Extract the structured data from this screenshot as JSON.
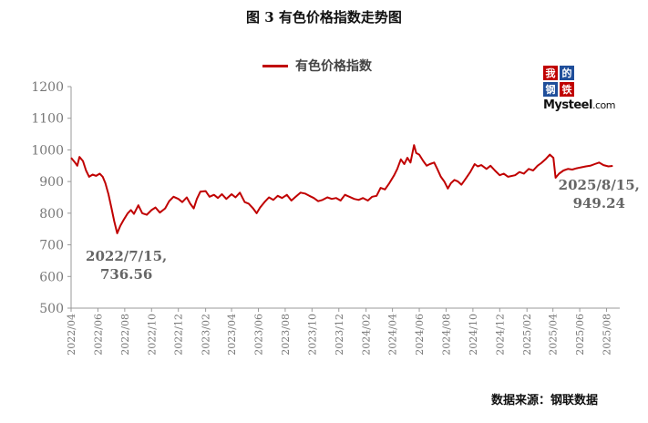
{
  "figure_title": "图 3   有色价格指数走势图",
  "source_text": "数据来源：钢联数据",
  "logo": {
    "chars": [
      "我",
      "的",
      "钢",
      "铁"
    ],
    "chars_colors": [
      "#c00000",
      "#1f4e9a",
      "#1f4e9a",
      "#c00000"
    ],
    "word": "Mysteel",
    "suffix": ".com"
  },
  "chart_data": {
    "type": "line",
    "title": "图 3   有色价格指数走势图",
    "legend": "top-center",
    "grid": false,
    "ylim": [
      500,
      1200
    ],
    "yticks": [
      "500",
      "600",
      "700",
      "800",
      "900",
      "1000",
      "1100",
      "1200"
    ],
    "xlim": [
      "2022-04-01",
      "2025-08-31"
    ],
    "xticks": [
      "2022/04",
      "2022/06",
      "2022/08",
      "2022/10",
      "2022/12",
      "2023/02",
      "2023/04",
      "2023/06",
      "2023/08",
      "2023/10",
      "2023/12",
      "2024/02",
      "2024/04",
      "2024/06",
      "2024/08",
      "2024/10",
      "2024/12",
      "2025/02",
      "2025/04",
      "2025/06",
      "2025/08"
    ],
    "series": [
      {
        "name": "有色价格指数",
        "color": "#c00000",
        "points": [
          [
            "2022-04-01",
            975
          ],
          [
            "2022-04-10",
            960
          ],
          [
            "2022-04-15",
            950
          ],
          [
            "2022-04-20",
            978
          ],
          [
            "2022-04-28",
            965
          ],
          [
            "2022-05-05",
            935
          ],
          [
            "2022-05-12",
            915
          ],
          [
            "2022-05-20",
            922
          ],
          [
            "2022-05-28",
            918
          ],
          [
            "2022-06-05",
            925
          ],
          [
            "2022-06-12",
            915
          ],
          [
            "2022-06-18",
            895
          ],
          [
            "2022-06-25",
            860
          ],
          [
            "2022-07-02",
            815
          ],
          [
            "2022-07-08",
            775
          ],
          [
            "2022-07-15",
            736.56
          ],
          [
            "2022-07-22",
            760
          ],
          [
            "2022-07-30",
            780
          ],
          [
            "2022-08-08",
            800
          ],
          [
            "2022-08-15",
            810
          ],
          [
            "2022-08-22",
            798
          ],
          [
            "2022-09-01",
            825
          ],
          [
            "2022-09-10",
            800
          ],
          [
            "2022-09-20",
            795
          ],
          [
            "2022-10-01",
            810
          ],
          [
            "2022-10-10",
            818
          ],
          [
            "2022-10-20",
            802
          ],
          [
            "2022-11-01",
            815
          ],
          [
            "2022-11-10",
            838
          ],
          [
            "2022-11-20",
            852
          ],
          [
            "2022-12-01",
            845
          ],
          [
            "2022-12-10",
            835
          ],
          [
            "2022-12-20",
            850
          ],
          [
            "2022-12-28",
            830
          ],
          [
            "2023-01-05",
            815
          ],
          [
            "2023-01-12",
            845
          ],
          [
            "2023-01-20",
            868
          ],
          [
            "2023-02-01",
            870
          ],
          [
            "2023-02-10",
            852
          ],
          [
            "2023-02-20",
            858
          ],
          [
            "2023-03-01",
            848
          ],
          [
            "2023-03-10",
            860
          ],
          [
            "2023-03-20",
            845
          ],
          [
            "2023-04-01",
            860
          ],
          [
            "2023-04-10",
            850
          ],
          [
            "2023-04-20",
            865
          ],
          [
            "2023-05-01",
            835
          ],
          [
            "2023-05-10",
            830
          ],
          [
            "2023-05-20",
            815
          ],
          [
            "2023-05-28",
            800
          ],
          [
            "2023-06-05",
            818
          ],
          [
            "2023-06-15",
            835
          ],
          [
            "2023-06-25",
            850
          ],
          [
            "2023-07-05",
            842
          ],
          [
            "2023-07-15",
            855
          ],
          [
            "2023-07-25",
            848
          ],
          [
            "2023-08-05",
            858
          ],
          [
            "2023-08-15",
            840
          ],
          [
            "2023-08-25",
            852
          ],
          [
            "2023-09-05",
            865
          ],
          [
            "2023-09-15",
            862
          ],
          [
            "2023-09-25",
            855
          ],
          [
            "2023-10-05",
            848
          ],
          [
            "2023-10-15",
            838
          ],
          [
            "2023-10-25",
            842
          ],
          [
            "2023-11-05",
            850
          ],
          [
            "2023-11-15",
            845
          ],
          [
            "2023-11-25",
            848
          ],
          [
            "2023-12-05",
            840
          ],
          [
            "2023-12-15",
            858
          ],
          [
            "2023-12-25",
            852
          ],
          [
            "2024-01-05",
            845
          ],
          [
            "2024-01-15",
            842
          ],
          [
            "2024-01-25",
            848
          ],
          [
            "2024-02-05",
            840
          ],
          [
            "2024-02-15",
            852
          ],
          [
            "2024-02-25",
            855
          ],
          [
            "2024-03-05",
            880
          ],
          [
            "2024-03-15",
            875
          ],
          [
            "2024-03-25",
            895
          ],
          [
            "2024-04-05",
            920
          ],
          [
            "2024-04-12",
            940
          ],
          [
            "2024-04-20",
            970
          ],
          [
            "2024-04-28",
            955
          ],
          [
            "2024-05-05",
            975
          ],
          [
            "2024-05-12",
            960
          ],
          [
            "2024-05-20",
            1015
          ],
          [
            "2024-05-25",
            990
          ],
          [
            "2024-06-01",
            985
          ],
          [
            "2024-06-10",
            965
          ],
          [
            "2024-06-18",
            950
          ],
          [
            "2024-06-25",
            955
          ],
          [
            "2024-07-05",
            960
          ],
          [
            "2024-07-12",
            940
          ],
          [
            "2024-07-20",
            915
          ],
          [
            "2024-07-28",
            900
          ],
          [
            "2024-08-05",
            878
          ],
          [
            "2024-08-12",
            895
          ],
          [
            "2024-08-20",
            905
          ],
          [
            "2024-08-28",
            900
          ],
          [
            "2024-09-05",
            890
          ],
          [
            "2024-09-15",
            910
          ],
          [
            "2024-09-25",
            930
          ],
          [
            "2024-10-05",
            955
          ],
          [
            "2024-10-12",
            948
          ],
          [
            "2024-10-20",
            952
          ],
          [
            "2024-11-01",
            940
          ],
          [
            "2024-11-10",
            950
          ],
          [
            "2024-11-20",
            935
          ],
          [
            "2024-12-01",
            920
          ],
          [
            "2024-12-10",
            925
          ],
          [
            "2024-12-20",
            915
          ],
          [
            "2025-01-05",
            920
          ],
          [
            "2025-01-15",
            930
          ],
          [
            "2025-01-25",
            925
          ],
          [
            "2025-02-05",
            940
          ],
          [
            "2025-02-15",
            935
          ],
          [
            "2025-02-25",
            950
          ],
          [
            "2025-03-05",
            958
          ],
          [
            "2025-03-15",
            970
          ],
          [
            "2025-03-25",
            985
          ],
          [
            "2025-04-02",
            975
          ],
          [
            "2025-04-07",
            912
          ],
          [
            "2025-04-15",
            925
          ],
          [
            "2025-04-25",
            935
          ],
          [
            "2025-05-05",
            940
          ],
          [
            "2025-05-15",
            938
          ],
          [
            "2025-05-25",
            942
          ],
          [
            "2025-06-05",
            945
          ],
          [
            "2025-06-15",
            948
          ],
          [
            "2025-06-25",
            950
          ],
          [
            "2025-07-05",
            955
          ],
          [
            "2025-07-15",
            960
          ],
          [
            "2025-07-25",
            952
          ],
          [
            "2025-08-05",
            948
          ],
          [
            "2025-08-15",
            949.24
          ]
        ]
      }
    ],
    "annotations": [
      {
        "date": "2022/7/15,",
        "value": "736.56",
        "x": "2022-07-15",
        "y": 736.56
      },
      {
        "date": "2025/8/15,",
        "value": "949.24",
        "x": "2025-08-15",
        "y": 949.24
      }
    ]
  }
}
